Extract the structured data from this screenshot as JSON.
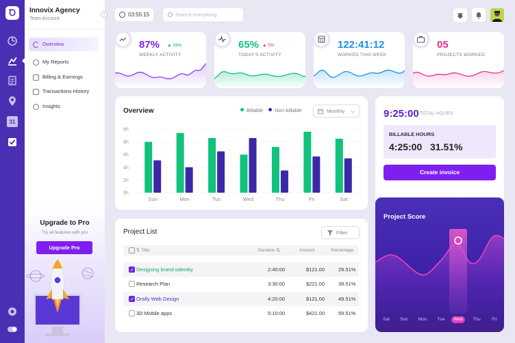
{
  "app": {
    "name": "Innovix Agency",
    "account": "Team Account",
    "logo_icon": "app-logo-icon"
  },
  "rail": {
    "icons": [
      "dashboard-icon",
      "chart-icon",
      "document-icon",
      "location-icon",
      "calendar-icon",
      "checkbox-icon"
    ],
    "calendar_day": "31",
    "bottom_icons": [
      "settings-icon",
      "toggle-icon"
    ]
  },
  "sidebar": {
    "items": [
      {
        "label": "Overview",
        "icon": "pie-chart-icon",
        "active": true
      },
      {
        "label": "My Reports",
        "icon": "reports-icon"
      },
      {
        "label": "Billing & Earnings",
        "icon": "billing-icon"
      },
      {
        "label": "Transactions History",
        "icon": "transactions-icon"
      },
      {
        "label": "Insights",
        "icon": "insights-icon"
      }
    ],
    "promo": {
      "title": "Upgrade to Pro",
      "subtitle": "Try all features with pro",
      "button": "Upgrade Pro"
    }
  },
  "topbar": {
    "timer": "03:55:15",
    "search_placeholder": "Search everything",
    "icons": [
      "bug-icon",
      "notification-icon"
    ]
  },
  "stats": [
    {
      "value": "87%",
      "change": "19%",
      "change_dir": "up",
      "label": "WEEKLY ACTIVITY",
      "color": "#7e1ff0",
      "icon": "trend-icon"
    },
    {
      "value": "65%",
      "change": "5%",
      "change_dir": "up",
      "label": "TODAY'S ACTIVITY",
      "color": "#10c27c",
      "icon": "pulse-icon"
    },
    {
      "value": "122:41:12",
      "change": "",
      "label": "WORKED THIS WEEK",
      "color": "#1d8fe8",
      "icon": "calendar-grid-icon"
    },
    {
      "value": "05",
      "change": "",
      "label": "PROJECTS WORKED",
      "color": "#e5338f",
      "icon": "briefcase-icon"
    }
  ],
  "overview": {
    "title": "Overview",
    "legend": [
      {
        "label": "Billable",
        "color": "#10c27c"
      },
      {
        "label": "Non-billable",
        "color": "#3b28a8"
      }
    ],
    "period": "Monthly"
  },
  "chart_data": {
    "type": "bar",
    "categories": [
      "Sun",
      "Mon",
      "Tus",
      "Wed",
      "Thu",
      "Fri",
      "Sat"
    ],
    "series": [
      {
        "name": "Billable",
        "values": [
          8.0,
          9.4,
          8.6,
          6.0,
          7.2,
          9.6,
          8.5
        ]
      },
      {
        "name": "Non-billable",
        "values": [
          5.1,
          4.0,
          6.5,
          8.6,
          3.5,
          5.7,
          5.4
        ]
      }
    ],
    "yticks": [
      "0h",
      "2h",
      "4h",
      "6h",
      "8h",
      "8h"
    ],
    "ylim": [
      0,
      10
    ],
    "grid": true
  },
  "projects": {
    "title": "Project List",
    "filter": "Filter",
    "columns": [
      "Title",
      "Duration",
      "Amount",
      "Percentage"
    ],
    "rows": [
      {
        "title": "Designing brand odentity",
        "duration": "2:40:00",
        "amount": "$121.00",
        "percentage": "29.51%",
        "checked": true,
        "highlight": "green"
      },
      {
        "title": "Research Plan",
        "duration": "3:30:00",
        "amount": "$221.00",
        "percentage": "39.51%",
        "checked": false
      },
      {
        "title": "Orally Web Design",
        "duration": "4:20:00",
        "amount": "$121.00",
        "percentage": "49.51%",
        "checked": true,
        "highlight": "purple"
      },
      {
        "title": "3D Mobile apps",
        "duration": "5:10:00",
        "amount": "$421.00",
        "percentage": "59.51%",
        "checked": false
      }
    ]
  },
  "hours": {
    "total": "9:25:00",
    "total_label": "TOTAL HOURS",
    "billable_label": "BILLABLE HOURS",
    "billable": "4:25:00",
    "billable_pct": "31.51%",
    "button": "Create invoice"
  },
  "project_score": {
    "title": "Project Score",
    "days": [
      "Sat",
      "Sun",
      "Mon",
      "Tue",
      "Wed",
      "Thu",
      "Fri"
    ],
    "selected": "Wed"
  }
}
